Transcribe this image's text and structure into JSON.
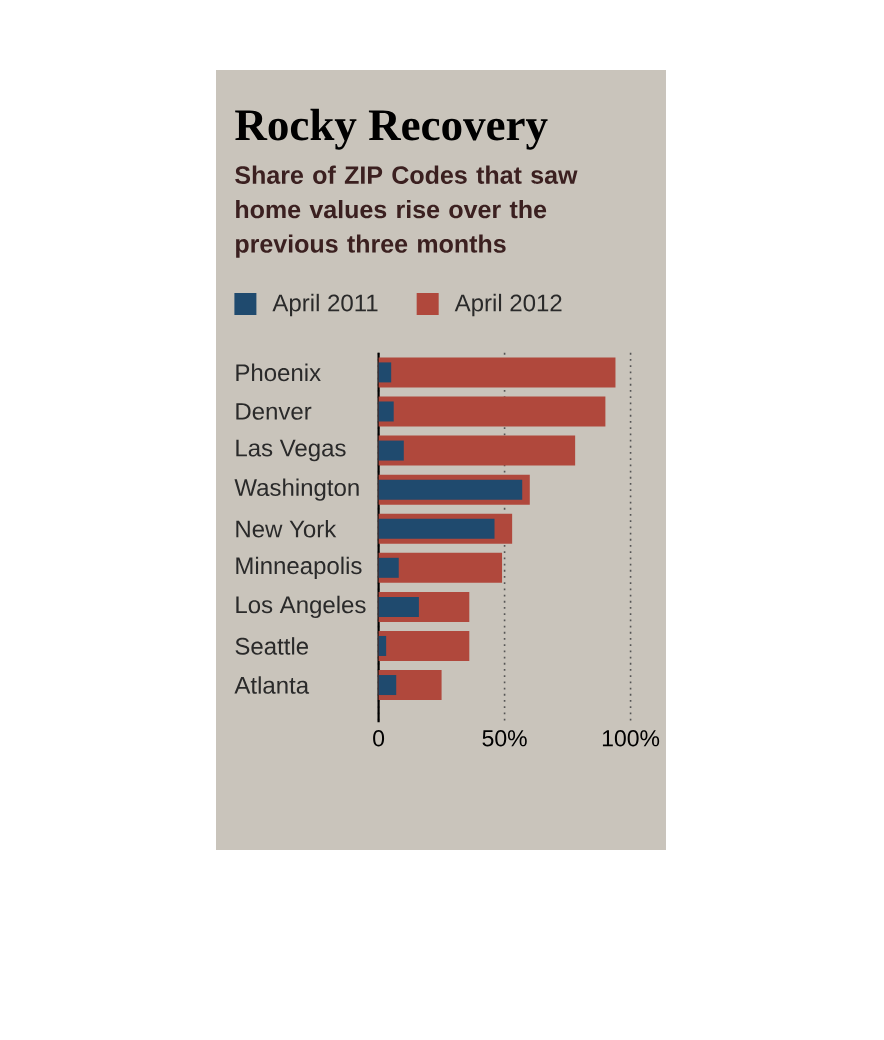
{
  "chart_data": {
    "type": "bar",
    "orientation": "horizontal",
    "title": "Rocky Recovery",
    "subtitle": "Share of ZIP Codes that saw home values rise over the previous three months",
    "categories": [
      "Phoenix",
      "Denver",
      "Las Vegas",
      "Washington",
      "New York",
      "Minneapolis",
      "Los Angeles",
      "Seattle",
      "Atlanta"
    ],
    "series": [
      {
        "name": "April 2011",
        "color": "#1f4a6e",
        "values": [
          5,
          6,
          10,
          57,
          46,
          8,
          16,
          3,
          7
        ]
      },
      {
        "name": "April 2012",
        "color": "#b0483c",
        "values": [
          94,
          90,
          78,
          60,
          53,
          49,
          36,
          36,
          25
        ]
      }
    ],
    "xlim": [
      0,
      100
    ],
    "xticks": [
      0,
      {
        "value": 50,
        "label": "50%"
      },
      {
        "value": 100,
        "label": "100%"
      }
    ],
    "grid": "x",
    "legend": "top"
  }
}
